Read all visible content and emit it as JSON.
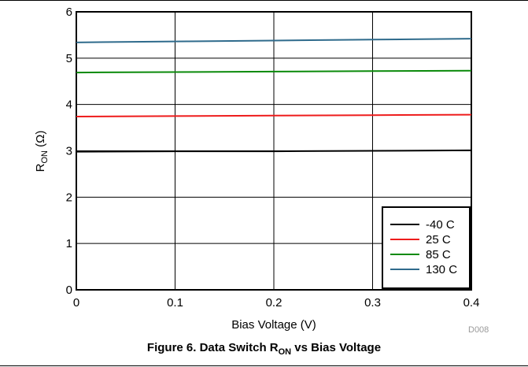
{
  "chart_data": {
    "type": "line",
    "xlabel": "Bias Voltage (V)",
    "ylabel": {
      "main": "R",
      "sub": "ON",
      "unit": " (Ω)"
    },
    "xlim": [
      0,
      0.4
    ],
    "ylim": [
      0,
      6
    ],
    "x_ticks": [
      "0",
      "0.1",
      "0.2",
      "0.3",
      "0.4"
    ],
    "y_ticks": [
      "0",
      "1",
      "2",
      "3",
      "4",
      "5",
      "6"
    ],
    "grid": true,
    "legend_position": "bottom-right",
    "x": [
      0,
      0.1,
      0.2,
      0.3,
      0.4
    ],
    "series": [
      {
        "name": "-40 C",
        "color": "#000000",
        "values": [
          2.98,
          2.99,
          2.99,
          3.0,
          3.01
        ]
      },
      {
        "name": "25 C",
        "color": "#ee1c1c",
        "values": [
          3.74,
          3.75,
          3.76,
          3.77,
          3.78
        ]
      },
      {
        "name": "85 C",
        "color": "#0a8a0a",
        "values": [
          4.69,
          4.7,
          4.71,
          4.72,
          4.73
        ]
      },
      {
        "name": "130 C",
        "color": "#2f6b8c",
        "values": [
          5.34,
          5.36,
          5.38,
          5.4,
          5.42
        ]
      }
    ]
  },
  "caption": {
    "prefix": "Figure 6. Data Switch R",
    "sub": "ON",
    "suffix": " vs Bias Voltage"
  },
  "tag": "D008"
}
